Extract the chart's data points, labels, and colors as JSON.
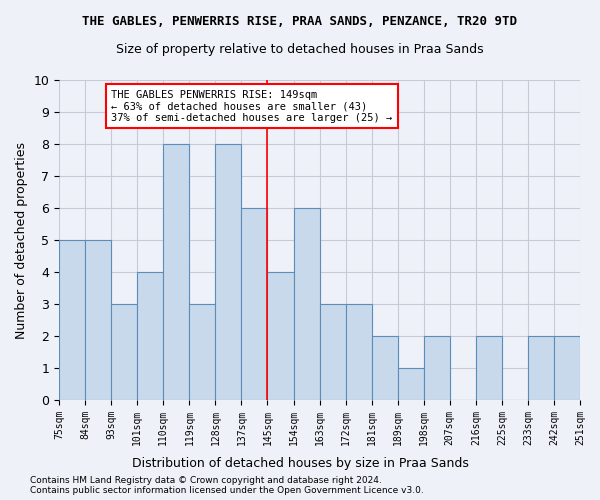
{
  "title": "THE GABLES, PENWERRIS RISE, PRAA SANDS, PENZANCE, TR20 9TD",
  "subtitle": "Size of property relative to detached houses in Praa Sands",
  "xlabel": "Distribution of detached houses by size in Praa Sands",
  "ylabel": "Number of detached properties",
  "footnote1": "Contains HM Land Registry data © Crown copyright and database right 2024.",
  "footnote2": "Contains public sector information licensed under the Open Government Licence v3.0.",
  "bins": [
    "75sqm",
    "84sqm",
    "93sqm",
    "101sqm",
    "110sqm",
    "119sqm",
    "128sqm",
    "137sqm",
    "145sqm",
    "154sqm",
    "163sqm",
    "172sqm",
    "181sqm",
    "189sqm",
    "198sqm",
    "207sqm",
    "216sqm",
    "225sqm",
    "233sqm",
    "242sqm",
    "251sqm"
  ],
  "values": [
    5,
    5,
    3,
    4,
    8,
    3,
    8,
    6,
    4,
    6,
    3,
    3,
    2,
    1,
    2,
    0,
    2,
    0,
    2,
    2
  ],
  "bar_color": "#c9d9ec",
  "bar_edge_color": "#5b8db8",
  "grid_color": "#c8c8d8",
  "bg_color": "#eef2f8",
  "vline_color": "red",
  "annotation_text": "THE GABLES PENWERRIS RISE: 149sqm\n← 63% of detached houses are smaller (43)\n37% of semi-detached houses are larger (25) →",
  "annotation_box_color": "white",
  "annotation_box_edge": "red",
  "ylim": [
    0,
    10
  ],
  "yticks": [
    0,
    1,
    2,
    3,
    4,
    5,
    6,
    7,
    8,
    9,
    10
  ]
}
